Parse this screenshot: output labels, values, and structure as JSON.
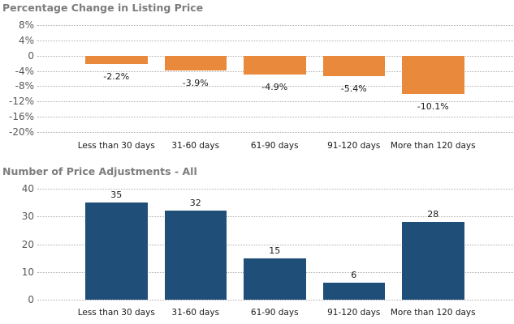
{
  "page": {
    "background_color": "#ffffff",
    "title_color": "#7d7d7d",
    "gridline_color": "#b0b0b0",
    "tick_label_color": "#595959",
    "data_label_color": "#1a1a1a"
  },
  "chart_data": [
    {
      "type": "bar",
      "title": "Percentage Change in Listing Price",
      "categories": [
        "Less than 30 days",
        "31-60 days",
        "61-90 days",
        "91-120 days",
        "More than 120 days"
      ],
      "values": [
        -2.2,
        -3.9,
        -4.9,
        -5.4,
        -10.1
      ],
      "value_labels": [
        "-2.2%",
        "-3.9%",
        "-4.9%",
        "-5.4%",
        "-10.1%"
      ],
      "ylim": [
        -20,
        8
      ],
      "yticks": [
        8,
        4,
        0,
        -4,
        -8,
        -12,
        -16,
        -20
      ],
      "ytick_labels": [
        "8%",
        "4%",
        "0",
        "-4%",
        "-8%",
        "-12%",
        "-16%",
        "-20%"
      ],
      "bar_color": "#e8893c",
      "grid": true,
      "legend": false,
      "value_label_position": "below-bar",
      "xlabel": "",
      "ylabel": ""
    },
    {
      "type": "bar",
      "title": "Number of Price Adjustments - All",
      "categories": [
        "Less than 30 days",
        "31-60 days",
        "61-90 days",
        "91-120 days",
        "More than 120 days"
      ],
      "values": [
        35,
        32,
        15,
        6,
        28
      ],
      "value_labels": [
        "35",
        "32",
        "15",
        "6",
        "28"
      ],
      "ylim": [
        0,
        40
      ],
      "yticks": [
        40,
        30,
        20,
        10,
        0
      ],
      "ytick_labels": [
        "40",
        "30",
        "20",
        "10",
        "0"
      ],
      "bar_color": "#1f4e79",
      "grid": true,
      "legend": false,
      "value_label_position": "above-bar",
      "xlabel": "",
      "ylabel": ""
    }
  ]
}
